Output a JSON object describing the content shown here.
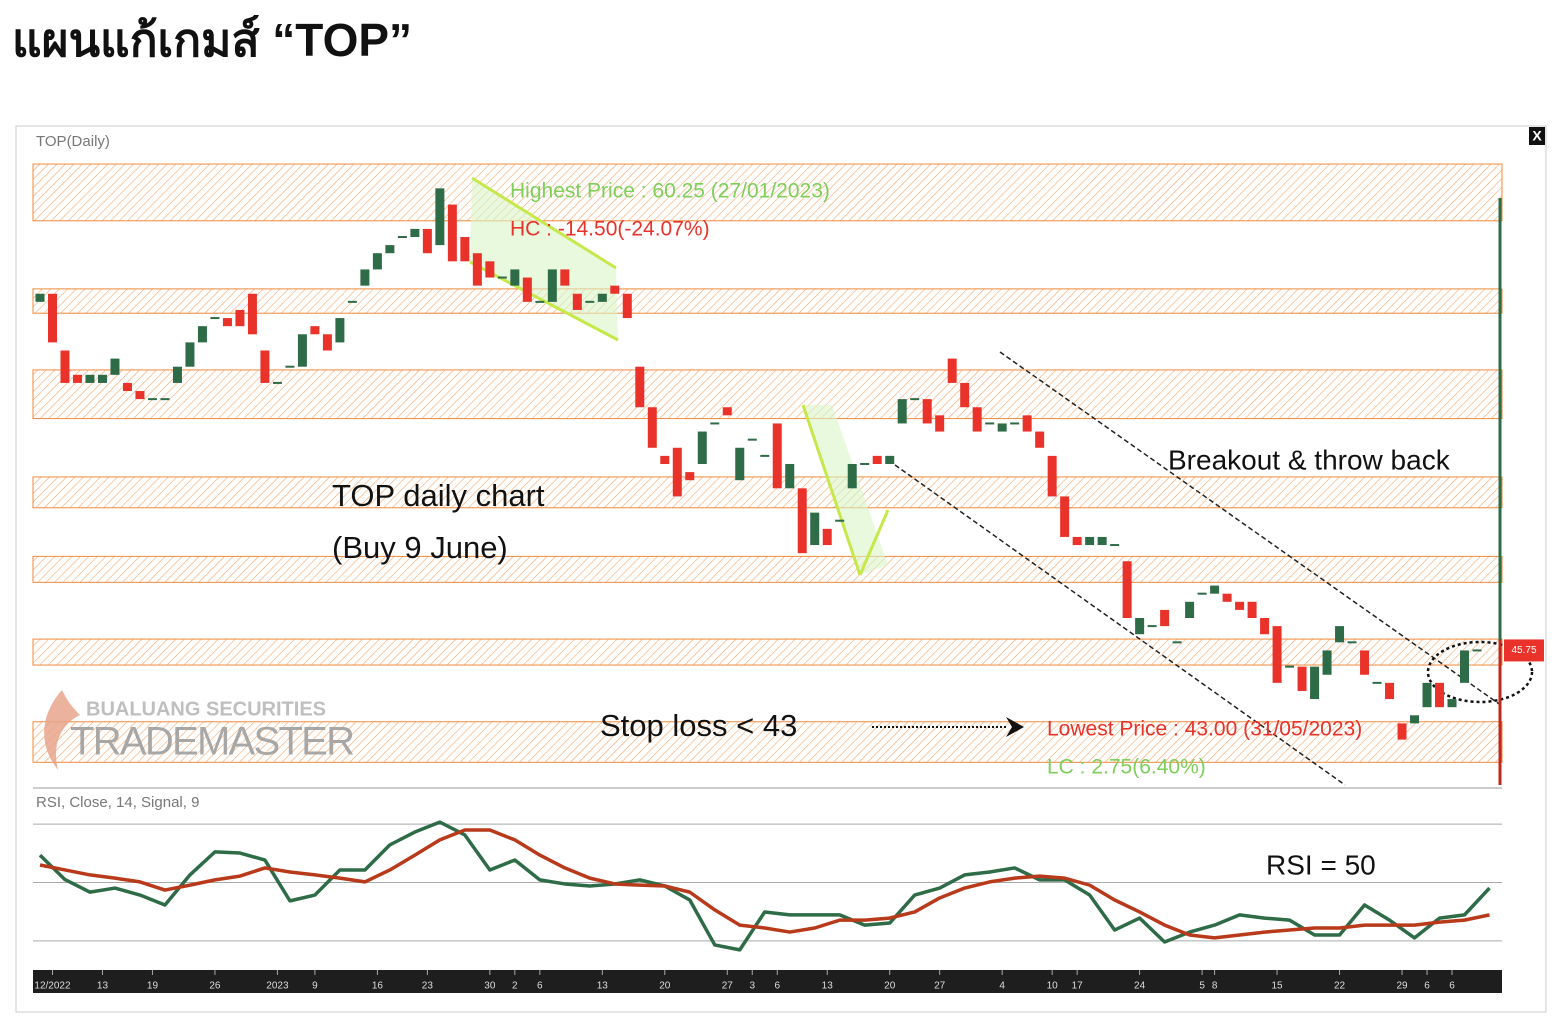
{
  "title": "แผนแก้เกมส์ “TOP”",
  "chart_data": [
    {
      "type": "candlestick",
      "title": "TOP(Daily)",
      "open": [
        56.5,
        56.75,
        55.0,
        54.25,
        54.0,
        54.0,
        54.25,
        54.0,
        53.75,
        53.5,
        53.5,
        54.0,
        54.5,
        55.25,
        56.0,
        56.0,
        56.25,
        56.75,
        55.0,
        54.0,
        54.5,
        54.5,
        55.75,
        55.5,
        55.25,
        56.5,
        57.0,
        57.5,
        58.0,
        58.5,
        58.5,
        58.75,
        58.25,
        59.5,
        58.5,
        58.0,
        57.75,
        57.25,
        57.0,
        57.25,
        56.5,
        56.5,
        57.5,
        56.75,
        56.5,
        56.5,
        57.0,
        56.75,
        54.5,
        53.25,
        51.75,
        52.0,
        51.25,
        51.5,
        52.75,
        53.25,
        51.0,
        52.25,
        51.75,
        52.75,
        50.75,
        50.75,
        49.0,
        49.5,
        49.75,
        50.75,
        51.5,
        51.75,
        51.5,
        52.75,
        53.5,
        53.5,
        53.0,
        54.75,
        54.0,
        53.25,
        52.75,
        52.5,
        52.75,
        53.0,
        52.5,
        51.75,
        50.5,
        49.25,
        49.0,
        49.0,
        49.0,
        48.5,
        46.25,
        46.5,
        47.0,
        46.0,
        46.75,
        47.5,
        47.5,
        47.5,
        47.25,
        47.25,
        46.75,
        46.5,
        45.25,
        45.25,
        44.25,
        45.0,
        46.0,
        46.0,
        45.75,
        44.75,
        44.75,
        43.5,
        43.5,
        44.0,
        44.75,
        44.0,
        44.75,
        45.75
      ],
      "close": [
        56.75,
        55.25,
        54.0,
        54.0,
        54.25,
        54.25,
        54.75,
        53.75,
        53.5,
        53.5,
        53.5,
        54.5,
        55.25,
        55.75,
        56.0,
        55.75,
        55.75,
        55.5,
        54.0,
        54.0,
        54.5,
        55.5,
        55.5,
        55.0,
        56.0,
        56.5,
        57.5,
        58.0,
        58.25,
        58.5,
        58.75,
        58.0,
        60.0,
        57.75,
        57.75,
        57.0,
        57.25,
        57.25,
        57.5,
        56.5,
        56.5,
        57.5,
        57.0,
        56.25,
        56.5,
        56.75,
        56.75,
        56.0,
        53.25,
        52.0,
        51.5,
        50.5,
        51.0,
        52.5,
        52.75,
        53.0,
        52.0,
        52.25,
        51.75,
        50.75,
        51.5,
        48.75,
        50.0,
        49.0,
        49.75,
        51.5,
        51.5,
        51.5,
        51.75,
        53.5,
        53.5,
        52.75,
        52.5,
        54.0,
        53.25,
        52.5,
        52.75,
        52.75,
        52.75,
        52.5,
        52.0,
        50.5,
        49.25,
        49.0,
        49.25,
        49.25,
        49.0,
        46.75,
        46.75,
        46.5,
        46.5,
        46.0,
        47.25,
        47.5,
        47.75,
        47.25,
        47.0,
        46.75,
        46.25,
        44.75,
        45.25,
        44.5,
        45.25,
        45.75,
        46.5,
        46.0,
        45.0,
        44.75,
        44.25,
        43.0,
        43.75,
        44.75,
        44.0,
        44.25,
        45.75,
        45.75
      ],
      "up_color": "#2e6b47",
      "down_color": "#e8322a",
      "xlim": [
        -0.56,
        117
      ],
      "ylim": [
        41.6,
        61.8
      ],
      "xticks": [
        {
          "value": 1,
          "label": "12/2022"
        },
        {
          "value": 5,
          "label": "13"
        },
        {
          "value": 9,
          "label": "19"
        },
        {
          "value": 14,
          "label": "26"
        },
        {
          "value": 19,
          "label": "2023"
        },
        {
          "value": 22,
          "label": "9"
        },
        {
          "value": 27,
          "label": "16"
        },
        {
          "value": 31,
          "label": "23"
        },
        {
          "value": 36,
          "label": "30"
        },
        {
          "value": 38,
          "label": "2"
        },
        {
          "value": 40,
          "label": "6"
        },
        {
          "value": 45,
          "label": "13"
        },
        {
          "value": 50,
          "label": "20"
        },
        {
          "value": 55,
          "label": "27"
        },
        {
          "value": 57,
          "label": "3"
        },
        {
          "value": 59,
          "label": "6"
        },
        {
          "value": 63,
          "label": "13"
        },
        {
          "value": 68,
          "label": "20"
        },
        {
          "value": 72,
          "label": "27"
        },
        {
          "value": 77,
          "label": "4"
        },
        {
          "value": 81,
          "label": "10"
        },
        {
          "value": 83,
          "label": "17"
        },
        {
          "value": 88,
          "label": "24"
        },
        {
          "value": 93,
          "label": "5"
        },
        {
          "value": 94,
          "label": "8"
        },
        {
          "value": 99,
          "label": "15"
        },
        {
          "value": 104,
          "label": "22"
        },
        {
          "value": 109,
          "label": "29"
        },
        {
          "value": 111,
          "label": "6"
        },
        {
          "value": 113,
          "label": "6"
        }
      ],
      "zones": [
        [
          59.0,
          60.75
        ],
        [
          56.15,
          56.9
        ],
        [
          52.9,
          54.4
        ],
        [
          50.15,
          51.1
        ],
        [
          47.85,
          48.65
        ],
        [
          45.3,
          46.1
        ],
        [
          42.3,
          43.55
        ]
      ],
      "zone_color": "#f08a3c",
      "last_price": 45.75
    },
    {
      "type": "line",
      "title": "RSI, Close, 14, Signal, 9",
      "x": [
        0,
        2,
        4,
        6,
        8,
        10,
        12,
        14,
        16,
        18,
        20,
        22,
        24,
        26,
        28,
        30,
        32,
        34,
        36,
        38,
        40,
        42,
        44,
        46,
        48,
        50,
        52,
        54,
        56,
        58,
        60,
        62,
        64,
        66,
        68,
        70,
        72,
        74,
        76,
        78,
        80,
        82,
        84,
        86,
        88,
        90,
        92,
        94,
        96,
        98,
        100,
        102,
        104,
        106,
        108,
        110,
        112,
        114,
        116
      ],
      "xlim": [
        -0.56,
        117
      ],
      "ylim": [
        20,
        80
      ],
      "hlines": [
        30,
        50,
        70
      ],
      "series": [
        {
          "color": "#2e6b47",
          "values": [
            59.4,
            51,
            46.7,
            48.1,
            45.7,
            42.3,
            52.6,
            60.5,
            60.1,
            57.7,
            43.7,
            45.7,
            54.3,
            54.3,
            62.9,
            67.3,
            70.7,
            66.3,
            54.3,
            57.7,
            50.9,
            49.5,
            48.8,
            49.5,
            50.9,
            48.8,
            44,
            28.6,
            26.9,
            39.9,
            38.9,
            38.9,
            38.9,
            35.4,
            36.1,
            45.7,
            48.1,
            52.6,
            53.6,
            55,
            50.9,
            50.9,
            45.7,
            33.7,
            37.8,
            29.6,
            33,
            35.4,
            38.9,
            37.8,
            37.1,
            32,
            32,
            42.3,
            37.1,
            31,
            37.8,
            38.9,
            48.1
          ]
        },
        {
          "color": "#b83a1a",
          "values": [
            56,
            54.3,
            52.6,
            51.5,
            50.2,
            47.4,
            49.1,
            50.9,
            52.2,
            55,
            53.6,
            52.6,
            51.5,
            50.2,
            54.3,
            59.4,
            64.6,
            68,
            68,
            64.6,
            59.4,
            55,
            51.5,
            49.5,
            49.1,
            48.8,
            46.7,
            40.6,
            35.4,
            34.4,
            33,
            34.4,
            37.1,
            37.1,
            37.8,
            39.9,
            44.7,
            48.1,
            50.2,
            51.5,
            52.2,
            51.5,
            49.1,
            44,
            39.9,
            35.4,
            32,
            31,
            32,
            33,
            33.7,
            34.4,
            34.4,
            35.4,
            35.4,
            35.4,
            36.4,
            37.1,
            38.9
          ]
        }
      ]
    }
  ],
  "annotations": {
    "highest": "Highest Price : 60.25 (27/01/2023)",
    "hc": "HC : -14.50(-24.07%)",
    "breakout": "Breakout & throw back",
    "chart_name": "TOP daily chart",
    "buy": "(Buy 9 June)",
    "stop_loss": "Stop loss < 43",
    "lowest": "Lowest Price : 43.00 (31/05/2023)",
    "lc": "LC : 2.75(6.40%)",
    "rsi_note": "RSI = 50"
  },
  "logo": {
    "company": "BUALUANG SECURITIES",
    "brand": "TRADEMASTER"
  },
  "close_button": "X"
}
